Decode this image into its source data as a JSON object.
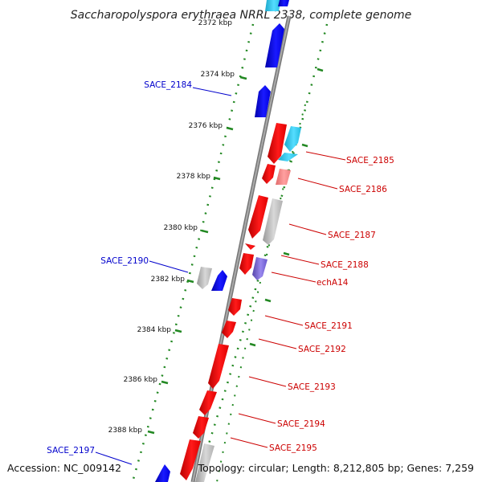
{
  "title": "Saccharopolyspora erythraea NRRL 2338, complete genome",
  "accession": "Accession: NC_009142",
  "topology": "Topology: circular; Length: 8,212,805 bp; Genes: 7,259",
  "ticks": [
    {
      "label": "2372 kbp",
      "pos": 2372
    },
    {
      "label": "2374 kbp",
      "pos": 2374
    },
    {
      "label": "2376 kbp",
      "pos": 2376
    },
    {
      "label": "2378 kbp",
      "pos": 2378
    },
    {
      "label": "2380 kbp",
      "pos": 2380
    },
    {
      "label": "2382 kbp",
      "pos": 2382
    },
    {
      "label": "2384 kbp",
      "pos": 2384
    },
    {
      "label": "2386 kbp",
      "pos": 2386
    },
    {
      "label": "2388 kbp",
      "pos": 2388
    }
  ],
  "genes_reverse": [
    "SACE_2185",
    "SACE_2186",
    "SACE_2187",
    "SACE_2188",
    "echA14",
    "SACE_2191",
    "SACE_2192",
    "SACE_2193",
    "SACE_2194",
    "SACE_2195"
  ],
  "genes_forward": [
    "SACE_2184",
    "SACE_2190",
    "SACE_2197"
  ],
  "colors": {
    "forward_cds": "#0000ee",
    "reverse_cds": "#ee0000",
    "other_gene": "#bbbbbb",
    "light_blue": "#33ccee",
    "pink": "#f08080",
    "purple": "#7766cc",
    "tick": "#228822",
    "backbone": "#888888",
    "forward_label": "#0000cc",
    "reverse_label": "#cc0000"
  }
}
